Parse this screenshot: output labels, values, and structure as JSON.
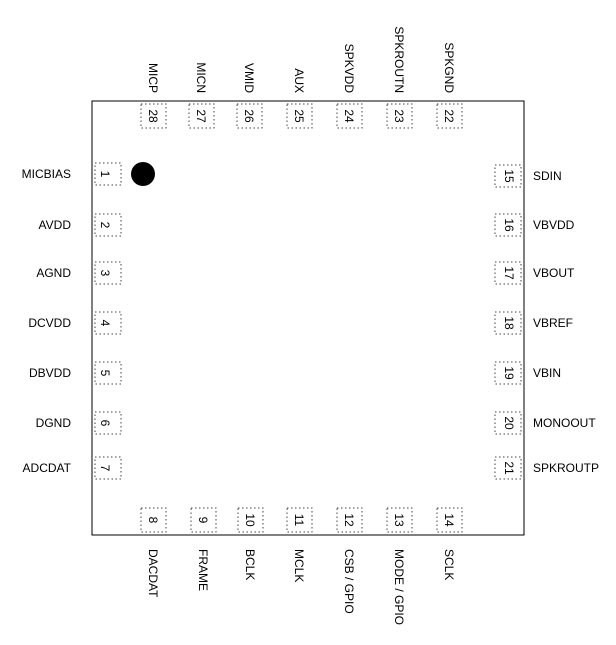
{
  "pins": {
    "left": [
      {
        "num": "1",
        "name": "MICBIAS"
      },
      {
        "num": "2",
        "name": "AVDD"
      },
      {
        "num": "3",
        "name": "AGND"
      },
      {
        "num": "4",
        "name": "DCVDD"
      },
      {
        "num": "5",
        "name": "DBVDD"
      },
      {
        "num": "6",
        "name": "DGND"
      },
      {
        "num": "7",
        "name": "ADCDAT"
      }
    ],
    "bottom": [
      {
        "num": "8",
        "name": "DACDAT"
      },
      {
        "num": "9",
        "name": "FRAME"
      },
      {
        "num": "10",
        "name": "BCLK"
      },
      {
        "num": "11",
        "name": "MCLK"
      },
      {
        "num": "12",
        "name": "CSB / GPIO"
      },
      {
        "num": "13",
        "name": "MODE / GPIO"
      },
      {
        "num": "14",
        "name": "SCLK"
      }
    ],
    "right": [
      {
        "num": "15",
        "name": "SDIN"
      },
      {
        "num": "16",
        "name": "VBVDD"
      },
      {
        "num": "17",
        "name": "VBOUT"
      },
      {
        "num": "18",
        "name": "VBREF"
      },
      {
        "num": "19",
        "name": "VBIN"
      },
      {
        "num": "20",
        "name": "MONOOUT"
      },
      {
        "num": "21",
        "name": "SPKROUTP"
      }
    ],
    "top": [
      {
        "num": "22",
        "name": "SPKGND"
      },
      {
        "num": "23",
        "name": "SPKROUTN"
      },
      {
        "num": "24",
        "name": "SPKVDD"
      },
      {
        "num": "25",
        "name": "AUX"
      },
      {
        "num": "26",
        "name": "VMID"
      },
      {
        "num": "27",
        "name": "MICN"
      },
      {
        "num": "28",
        "name": "MICP"
      }
    ]
  }
}
